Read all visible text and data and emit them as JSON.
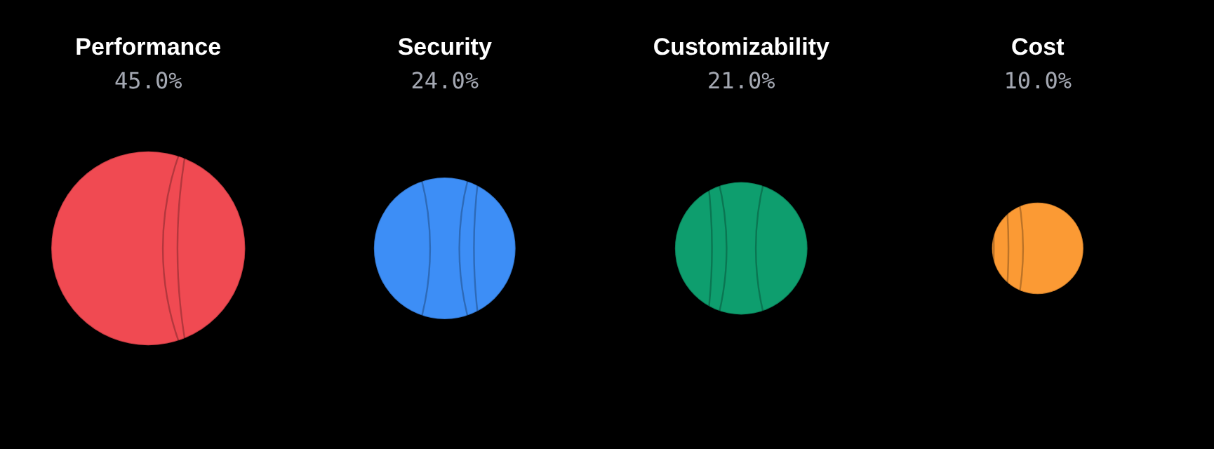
{
  "chart_data": {
    "type": "other",
    "categories": [
      "Performance",
      "Security",
      "Customizability",
      "Cost"
    ],
    "values": [
      45,
      24,
      21,
      10
    ],
    "value_labels": [
      "45.0%",
      "24.0%",
      "21.0%",
      "10.0%"
    ],
    "colors": [
      "#f04a52",
      "#3d8ef6",
      "#0e9e6e",
      "#fb9a34"
    ]
  }
}
